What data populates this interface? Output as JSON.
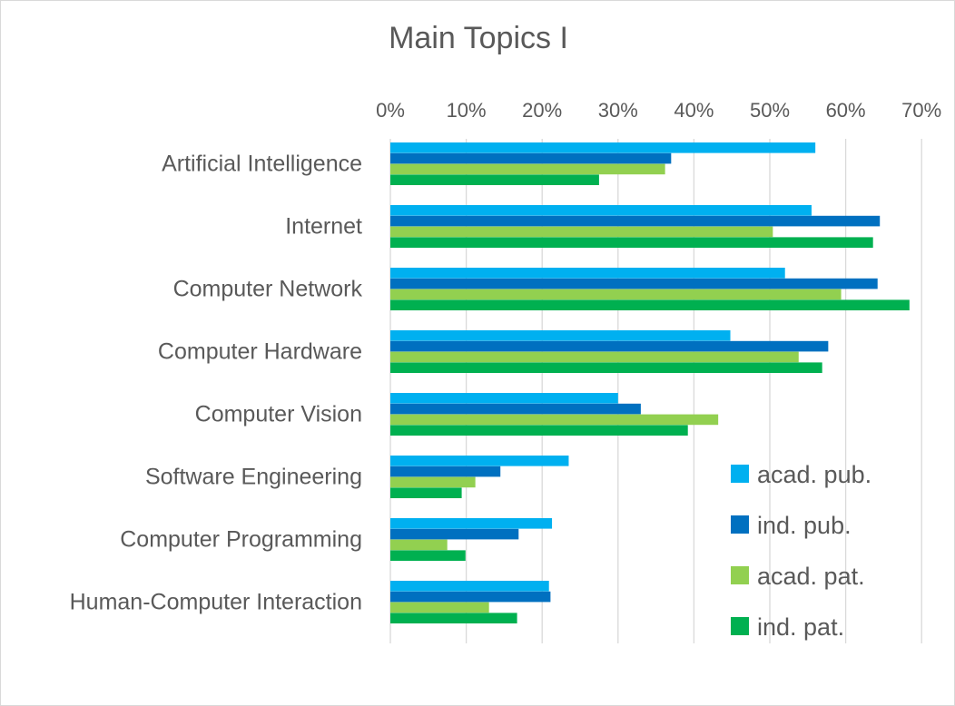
{
  "chart_data": {
    "type": "bar",
    "orientation": "horizontal",
    "title": "Main Topics I",
    "categories": [
      "Artificial Intelligence",
      "Internet",
      "Computer Network",
      "Computer Hardware",
      "Computer Vision",
      "Software Engineering",
      "Computer Programming",
      "Human-Computer Interaction"
    ],
    "series": [
      {
        "name": "acad. pub.",
        "color": "#00B0F0",
        "values": [
          56,
          55.5,
          52,
          44.8,
          30,
          23.5,
          21.3,
          20.9
        ]
      },
      {
        "name": "ind. pub.",
        "color": "#0070C0",
        "values": [
          37,
          64.5,
          64.2,
          57.7,
          33,
          14.5,
          16.9,
          21.1
        ]
      },
      {
        "name": "acad. pat.",
        "color": "#92D050",
        "values": [
          36.2,
          50.4,
          59.4,
          53.8,
          43.2,
          11.2,
          7.5,
          13
        ]
      },
      {
        "name": "ind. pat.",
        "color": "#00B050",
        "values": [
          27.5,
          63.6,
          68.4,
          56.9,
          39.2,
          9.4,
          9.9,
          16.7
        ]
      }
    ],
    "x_ticks": [
      "0%",
      "10%",
      "20%",
      "30%",
      "40%",
      "50%",
      "60%",
      "70%"
    ],
    "xlim": [
      0,
      70
    ],
    "x_axis_position": "top",
    "grid": true,
    "legend_position": "bottom-right"
  }
}
